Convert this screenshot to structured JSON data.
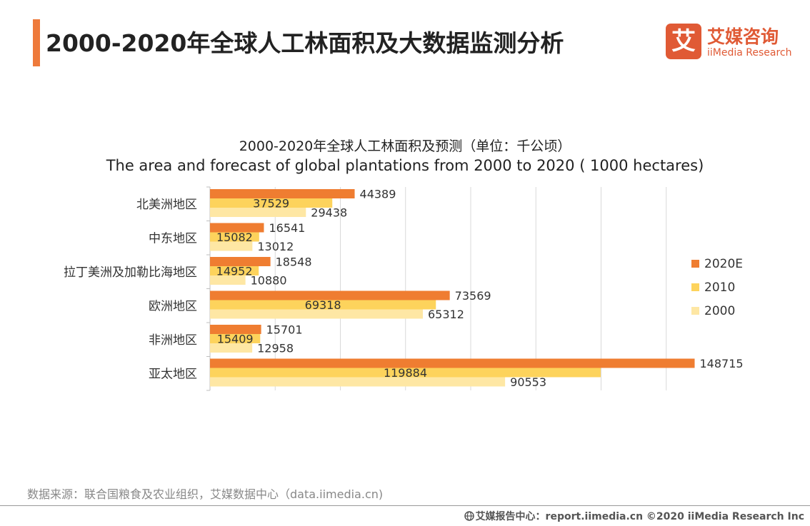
{
  "header": {
    "title": "2000-2020年全球人工林面积及大数据监测分析",
    "logo_mark": "艾",
    "logo_cn": "艾媒咨询",
    "logo_en": "iiMedia Research"
  },
  "colors": {
    "accent": "#ee7a3b",
    "s2020": "#ef7d31",
    "s2010": "#fdd35c",
    "s2000": "#fee7a4"
  },
  "chart_data": {
    "type": "bar",
    "orientation": "horizontal",
    "title": "2000-2020年全球人工林面积及预测（单位：千公顷）",
    "subtitle": "The area and forecast of global plantations from 2000 to 2020 ( 1000 hectares)",
    "categories": [
      "北美洲地区",
      "中东地区",
      "拉丁美洲及加勒比海地区",
      "欧洲地区",
      "非洲地区",
      "亚太地区"
    ],
    "series": [
      {
        "name": "2020E",
        "color": "#ef7d31",
        "values": [
          44389,
          16541,
          18548,
          73569,
          15701,
          148715
        ]
      },
      {
        "name": "2010",
        "color": "#fdd35c",
        "values": [
          37529,
          15082,
          14952,
          69318,
          15409,
          119884
        ]
      },
      {
        "name": "2000",
        "color": "#fee7a4",
        "values": [
          29438,
          13012,
          10880,
          65312,
          12958,
          90553
        ]
      }
    ],
    "xlim": [
      0,
      160000
    ],
    "grid": true,
    "legend": "right"
  },
  "footer": {
    "source": "数据来源：联合国粮食及农业组织，艾媒数据中心（data.iimedia.cn)",
    "copyright": "艾媒报告中心：report.iimedia.cn  ©2020  iiMedia Research  Inc"
  }
}
